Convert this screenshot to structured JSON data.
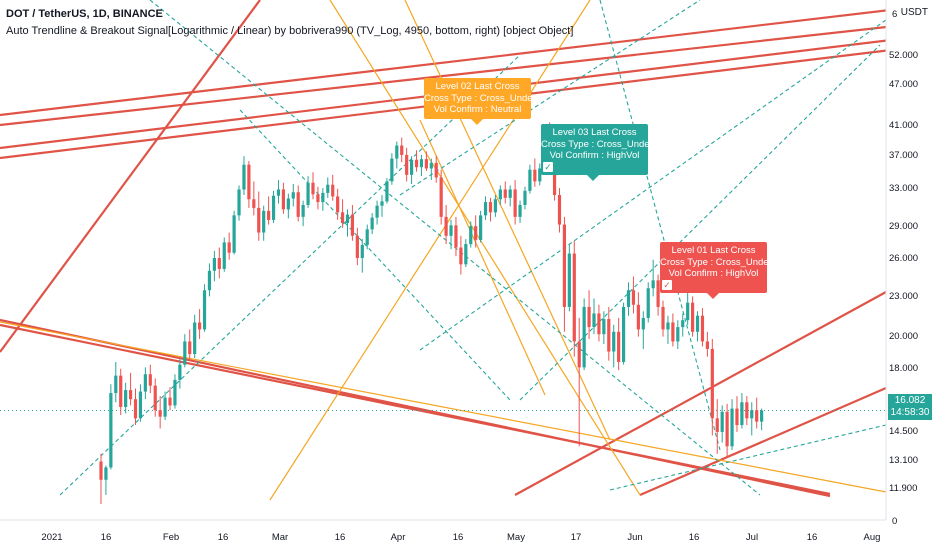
{
  "symbol_line": "DOT / TetherUS, 1D, BINANCE",
  "indicator_line": "Auto Trendline & Breakout Signal[Logarithmic / Linear) by bobrivera990 (TV_Log, 4950, bottom, right) [object Object]",
  "currency": "USDT",
  "price_axis_ticks": [
    "52.000",
    "47.000",
    "41.000",
    "37.000",
    "33.000",
    "29.000",
    "26.000",
    "23.000",
    "20.000",
    "18.000",
    "14.500",
    "13.100",
    "11.900"
  ],
  "price_axis_extra": {
    "top": "6",
    "bottom": "0"
  },
  "current_price": {
    "value": "16.082",
    "countdown": "14:58:30"
  },
  "time_axis_ticks": [
    "2021",
    "16",
    "Feb",
    "16",
    "Mar",
    "16",
    "Apr",
    "16",
    "May",
    "17",
    "Jun",
    "16",
    "Jul",
    "16",
    "Aug"
  ],
  "signals": [
    {
      "title": "Level 02 Last Cross",
      "cross": "Cross Type : Cross_Under",
      "vol": "Vol Confirm : Neutral",
      "confirmed": false,
      "color": "#ffa726"
    },
    {
      "title": "Level 03 Last Cross",
      "cross": "Cross Type : Cross_Under",
      "vol": "Vol Confirm : HighVol",
      "confirmed": true,
      "color": "#26a69a"
    },
    {
      "title": "Level 01 Last Cross",
      "cross": "Cross Type : Cross_Under",
      "vol": "Vol Confirm : HighVol",
      "confirmed": true,
      "color": "#ef5350"
    }
  ],
  "colors": {
    "bull": "#26a69a",
    "bear": "#ef5350",
    "trend_red": "#e05347",
    "trend_orange": "#f5a623",
    "trend_teal": "#26a69a",
    "price_line": "#26a69a"
  },
  "chart_data": {
    "type": "candlestick",
    "title": "DOT / TetherUS, 1D, BINANCE",
    "ylim": [
      11.2,
      60
    ],
    "y_scale": "log",
    "grid": false,
    "candles": [
      [
        13.2,
        13.6,
        11.2,
        12.3
      ],
      [
        12.3,
        13.0,
        11.6,
        12.9
      ],
      [
        12.9,
        17.8,
        12.8,
        17.2
      ],
      [
        17.2,
        19.4,
        16.6,
        18.4
      ],
      [
        18.4,
        18.9,
        15.8,
        16.3
      ],
      [
        16.3,
        17.9,
        15.9,
        17.4
      ],
      [
        17.4,
        18.6,
        16.4,
        16.8
      ],
      [
        16.8,
        17.5,
        15.2,
        15.6
      ],
      [
        15.6,
        17.8,
        15.4,
        17.3
      ],
      [
        17.3,
        19.0,
        16.8,
        18.5
      ],
      [
        18.5,
        19.2,
        17.2,
        17.7
      ],
      [
        17.7,
        18.2,
        15.7,
        16.1
      ],
      [
        16.1,
        17.0,
        15.0,
        15.7
      ],
      [
        15.7,
        17.3,
        15.5,
        16.9
      ],
      [
        16.9,
        17.6,
        16.1,
        16.4
      ],
      [
        16.4,
        18.5,
        16.2,
        18.1
      ],
      [
        18.1,
        19.6,
        17.5,
        19.2
      ],
      [
        19.2,
        21.6,
        19.0,
        21.0
      ],
      [
        21.0,
        22.0,
        19.5,
        20.0
      ],
      [
        20.0,
        23.3,
        19.7,
        22.6
      ],
      [
        22.6,
        23.8,
        21.2,
        22.0
      ],
      [
        22.0,
        26.2,
        21.8,
        25.6
      ],
      [
        25.6,
        28.4,
        25.0,
        27.6
      ],
      [
        27.6,
        29.8,
        26.5,
        29.0
      ],
      [
        29.0,
        30.2,
        26.8,
        27.8
      ],
      [
        27.8,
        31.4,
        27.5,
        30.8
      ],
      [
        30.8,
        32.0,
        28.8,
        29.6
      ],
      [
        29.6,
        34.8,
        29.4,
        34.2
      ],
      [
        34.2,
        38.4,
        33.5,
        37.8
      ],
      [
        37.8,
        43.0,
        37.0,
        41.6
      ],
      [
        41.6,
        42.2,
        35.2,
        36.4
      ],
      [
        36.4,
        39.0,
        34.2,
        35.2
      ],
      [
        35.2,
        37.5,
        31.0,
        32.0
      ],
      [
        32.0,
        35.5,
        31.0,
        34.8
      ],
      [
        34.8,
        36.8,
        33.0,
        33.6
      ],
      [
        33.6,
        37.6,
        33.2,
        36.9
      ],
      [
        36.9,
        39.2,
        35.8,
        37.8
      ],
      [
        37.8,
        38.8,
        34.4,
        35.0
      ],
      [
        35.0,
        37.2,
        33.8,
        36.5
      ],
      [
        36.5,
        38.6,
        35.4,
        37.4
      ],
      [
        37.4,
        38.4,
        33.4,
        34.0
      ],
      [
        34.0,
        36.2,
        32.8,
        35.6
      ],
      [
        35.6,
        39.8,
        35.2,
        38.8
      ],
      [
        38.8,
        40.4,
        36.4,
        37.1
      ],
      [
        37.1,
        38.2,
        35.0,
        36.0
      ],
      [
        36.0,
        38.0,
        34.8,
        37.3
      ],
      [
        37.3,
        39.6,
        36.6,
        38.5
      ],
      [
        38.5,
        40.0,
        36.2,
        36.8
      ],
      [
        36.8,
        37.9,
        33.6,
        34.6
      ],
      [
        34.6,
        36.4,
        32.6,
        33.2
      ],
      [
        33.2,
        35.0,
        31.5,
        34.3
      ],
      [
        34.3,
        35.6,
        31.0,
        31.6
      ],
      [
        31.6,
        32.6,
        28.2,
        29.0
      ],
      [
        29.0,
        31.2,
        27.4,
        30.5
      ],
      [
        30.5,
        33.0,
        30.0,
        32.4
      ],
      [
        32.4,
        34.5,
        31.8,
        33.9
      ],
      [
        33.9,
        36.2,
        33.0,
        35.5
      ],
      [
        35.5,
        37.0,
        34.0,
        36.1
      ],
      [
        36.1,
        39.5,
        35.8,
        39.0
      ],
      [
        39.0,
        43.5,
        38.5,
        42.6
      ],
      [
        42.6,
        45.5,
        41.0,
        44.8
      ],
      [
        44.8,
        46.2,
        42.0,
        43.2
      ],
      [
        43.2,
        44.4,
        39.0,
        40.0
      ],
      [
        40.0,
        43.0,
        38.6,
        42.4
      ],
      [
        42.4,
        44.0,
        40.5,
        41.2
      ],
      [
        41.2,
        43.2,
        39.8,
        42.5
      ],
      [
        42.5,
        43.8,
        40.6,
        41.0
      ],
      [
        41.0,
        42.6,
        39.2,
        41.9
      ],
      [
        41.9,
        43.0,
        38.8,
        39.6
      ],
      [
        39.6,
        40.8,
        33.0,
        34.0
      ],
      [
        34.0,
        35.6,
        30.6,
        31.6
      ],
      [
        31.6,
        33.6,
        30.0,
        32.9
      ],
      [
        32.9,
        34.0,
        29.2,
        30.2
      ],
      [
        30.2,
        31.6,
        27.2,
        28.3
      ],
      [
        28.3,
        31.2,
        28.0,
        30.6
      ],
      [
        30.6,
        33.4,
        30.2,
        32.8
      ],
      [
        32.8,
        34.2,
        30.2,
        31.1
      ],
      [
        31.1,
        34.8,
        30.8,
        34.2
      ],
      [
        34.2,
        36.8,
        33.6,
        36.0
      ],
      [
        36.0,
        36.6,
        33.4,
        34.6
      ],
      [
        34.6,
        37.0,
        34.0,
        36.4
      ],
      [
        36.4,
        38.4,
        35.6,
        37.8
      ],
      [
        37.8,
        39.0,
        35.8,
        36.6
      ],
      [
        36.6,
        38.4,
        35.4,
        37.8
      ],
      [
        37.8,
        39.2,
        33.0,
        34.0
      ],
      [
        34.0,
        36.2,
        33.2,
        35.6
      ],
      [
        35.6,
        38.2,
        35.0,
        37.6
      ],
      [
        37.6,
        41.6,
        37.2,
        40.8
      ],
      [
        40.8,
        42.6,
        38.2,
        39.0
      ],
      [
        39.0,
        41.8,
        38.4,
        41.0
      ],
      [
        41.0,
        48.4,
        40.4,
        47.2
      ],
      [
        47.2,
        49.0,
        40.8,
        42.0
      ],
      [
        42.0,
        43.0,
        36.2,
        37.0
      ],
      [
        37.0,
        38.0,
        32.0,
        33.0
      ],
      [
        33.0,
        34.0,
        21.8,
        24.0
      ],
      [
        24.0,
        30.6,
        23.6,
        29.5
      ],
      [
        29.5,
        31.0,
        19.8,
        21.0
      ],
      [
        21.0,
        23.0,
        14.0,
        19.0
      ],
      [
        19.0,
        24.8,
        18.8,
        24.0
      ],
      [
        24.0,
        25.6,
        21.2,
        22.2
      ],
      [
        22.2,
        24.8,
        21.6,
        23.4
      ],
      [
        23.4,
        24.2,
        21.0,
        21.6
      ],
      [
        21.6,
        23.6,
        20.8,
        22.9
      ],
      [
        22.9,
        24.0,
        19.5,
        20.2
      ],
      [
        20.2,
        22.4,
        19.0,
        21.8
      ],
      [
        21.8,
        23.0,
        18.8,
        19.4
      ],
      [
        19.4,
        24.4,
        19.2,
        24.0
      ],
      [
        24.0,
        26.4,
        23.2,
        25.6
      ],
      [
        25.6,
        27.0,
        23.4,
        24.2
      ],
      [
        24.2,
        25.4,
        21.4,
        22.0
      ],
      [
        22.0,
        23.6,
        20.4,
        23.0
      ],
      [
        23.0,
        26.4,
        22.6,
        25.8
      ],
      [
        25.8,
        28.8,
        25.0,
        26.6
      ],
      [
        26.6,
        27.2,
        23.2,
        24.0
      ],
      [
        24.0,
        24.6,
        21.4,
        22.0
      ],
      [
        22.0,
        23.2,
        20.8,
        22.6
      ],
      [
        22.6,
        23.4,
        20.6,
        21.0
      ],
      [
        21.0,
        22.8,
        20.4,
        22.2
      ],
      [
        22.2,
        23.4,
        21.4,
        22.8
      ],
      [
        22.8,
        26.0,
        22.4,
        24.4
      ],
      [
        24.4,
        25.0,
        21.4,
        21.8
      ],
      [
        21.8,
        23.6,
        21.0,
        23.2
      ],
      [
        23.2,
        23.9,
        20.6,
        21.0
      ],
      [
        21.0,
        21.8,
        19.8,
        20.4
      ],
      [
        20.4,
        21.2,
        14.6,
        15.6
      ],
      [
        15.6,
        16.8,
        13.6,
        14.8
      ],
      [
        14.8,
        16.4,
        14.2,
        16.0
      ],
      [
        16.0,
        16.5,
        13.4,
        14.0
      ],
      [
        14.0,
        16.8,
        13.8,
        16.2
      ],
      [
        16.2,
        17.0,
        14.8,
        15.2
      ],
      [
        15.2,
        17.2,
        15.0,
        16.6
      ],
      [
        16.6,
        17.0,
        15.2,
        15.6
      ],
      [
        15.6,
        16.6,
        14.6,
        16.1
      ],
      [
        16.1,
        16.9,
        15.0,
        15.4
      ],
      [
        15.4,
        16.2,
        14.9,
        16.08
      ]
    ],
    "current_price": 16.082
  }
}
